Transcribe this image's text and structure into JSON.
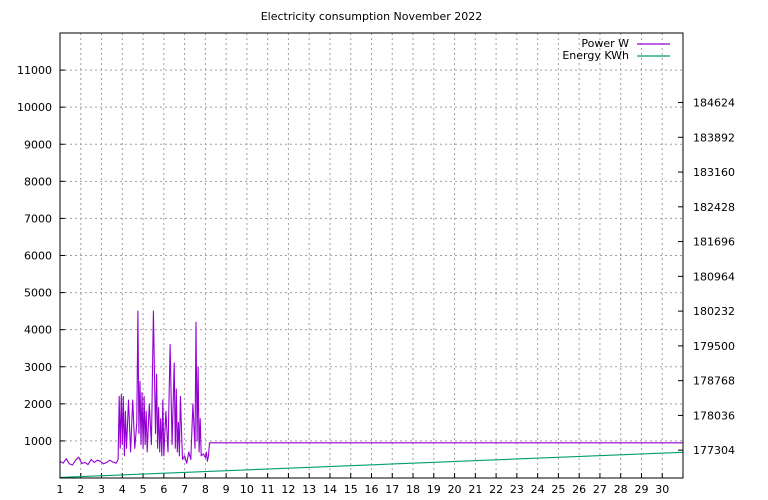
{
  "chart_data": {
    "type": "line",
    "title": "Electricity consumption November 2022",
    "xlabel": "",
    "ylabel": "",
    "y2label": "",
    "grid": true,
    "legend_position": "top-right",
    "xlim": [
      1,
      31
    ],
    "ylim": [
      0,
      12000
    ],
    "y2lim": [
      176718,
      186088
    ],
    "x_ticks": [
      1,
      2,
      3,
      4,
      5,
      6,
      7,
      8,
      9,
      10,
      11,
      12,
      13,
      14,
      15,
      16,
      17,
      18,
      19,
      20,
      21,
      22,
      23,
      24,
      25,
      26,
      27,
      28,
      29,
      30
    ],
    "y_ticks": [
      1000,
      2000,
      3000,
      4000,
      5000,
      6000,
      7000,
      8000,
      9000,
      10000,
      11000
    ],
    "y2_ticks": [
      177304,
      178036,
      178768,
      179500,
      180232,
      180964,
      181696,
      182428,
      183160,
      183892,
      184624
    ],
    "series": [
      {
        "name": "Power W",
        "axis": "y",
        "color": "#9400d3",
        "x": [
          1.0,
          1.15,
          1.3,
          1.45,
          1.6,
          1.75,
          1.9,
          2.05,
          2.2,
          2.35,
          2.5,
          2.65,
          2.8,
          2.95,
          3.1,
          3.25,
          3.4,
          3.55,
          3.7,
          3.8,
          3.85,
          3.9,
          3.95,
          4.0,
          4.05,
          4.1,
          4.15,
          4.2,
          4.3,
          4.4,
          4.5,
          4.6,
          4.7,
          4.75,
          4.8,
          4.85,
          4.9,
          4.95,
          5.0,
          5.05,
          5.1,
          5.15,
          5.2,
          5.3,
          5.4,
          5.5,
          5.6,
          5.65,
          5.7,
          5.75,
          5.8,
          5.85,
          5.9,
          5.95,
          6.0,
          6.1,
          6.2,
          6.3,
          6.4,
          6.5,
          6.55,
          6.6,
          6.65,
          6.7,
          6.75,
          6.8,
          6.9,
          7.0,
          7.1,
          7.2,
          7.3,
          7.4,
          7.5,
          7.55,
          7.6,
          7.65,
          7.7,
          7.75,
          7.8,
          7.9,
          8.0,
          8.05,
          8.1,
          8.15,
          8.2,
          30.9,
          31.0
        ],
        "y": [
          450,
          400,
          520,
          380,
          350,
          480,
          560,
          390,
          420,
          360,
          500,
          420,
          480,
          450,
          380,
          420,
          480,
          430,
          400,
          500,
          2200,
          800,
          2250,
          900,
          2200,
          600,
          1800,
          800,
          2100,
          700,
          2100,
          800,
          1500,
          4500,
          1200,
          2600,
          900,
          2300,
          800,
          2200,
          900,
          1800,
          700,
          2000,
          900,
          4500,
          1200,
          2800,
          800,
          1900,
          700,
          1600,
          600,
          2100,
          600,
          1800,
          700,
          3600,
          900,
          3100,
          800,
          2400,
          700,
          1500,
          600,
          2200,
          500,
          600,
          400,
          700,
          500,
          2000,
          800,
          4200,
          1000,
          3000,
          700,
          1600,
          600,
          650,
          550,
          700,
          450,
          600,
          950,
          950,
          950
        ]
      },
      {
        "name": "Energy KWh",
        "axis": "y2",
        "color": "#009e73",
        "x": [
          1,
          31
        ],
        "y": [
          176730,
          177260
        ]
      }
    ]
  }
}
